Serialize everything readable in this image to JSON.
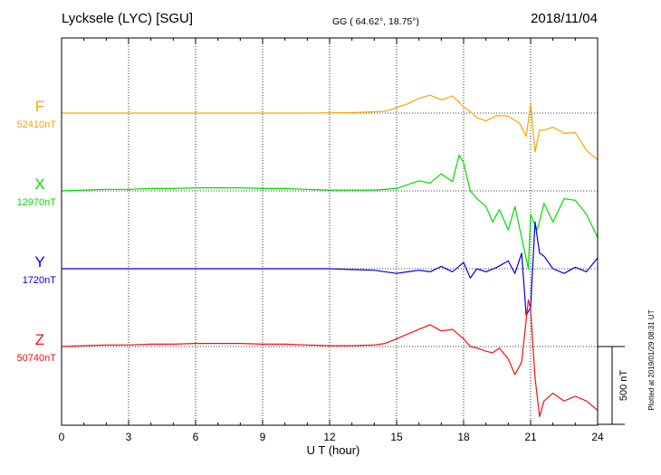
{
  "header": {
    "station": "Lycksele (LYC)  [SGU]",
    "coords": "GG ( 64.62°,  18.75°)",
    "date": "2018/11/04"
  },
  "plotted_note": "Plotted at 2019/01/29 08:31  UT",
  "chart_data": {
    "type": "line",
    "xlabel": "U T (hour)",
    "xlim": [
      0,
      24
    ],
    "xticks": [
      "0",
      "3",
      "6",
      "9",
      "12",
      "15",
      "18",
      "21",
      "24"
    ],
    "grid": true,
    "scale_bar": {
      "label": "500 nT",
      "value": 500,
      "unit": "nT"
    },
    "series": [
      {
        "name": "F",
        "baseline_label": "52410nT",
        "color": "#f5a800",
        "x": [
          0,
          1,
          2,
          3,
          4,
          5,
          6,
          7,
          8,
          9,
          10,
          11,
          12,
          13,
          14,
          14.5,
          15,
          15.5,
          16,
          16.5,
          17,
          17.5,
          17.8,
          18,
          18.3,
          18.6,
          19,
          19.5,
          20,
          20.5,
          20.8,
          21,
          21.2,
          21.4,
          21.6,
          22,
          22.5,
          23,
          23.5,
          24
        ],
        "y": [
          0,
          0,
          0,
          0,
          0,
          0,
          0,
          0,
          0,
          0,
          0,
          0,
          2,
          3,
          8,
          12,
          35,
          60,
          95,
          115,
          85,
          110,
          70,
          40,
          10,
          -30,
          -50,
          -15,
          -20,
          -65,
          -150,
          55,
          -250,
          -110,
          -110,
          -90,
          -130,
          -125,
          -240,
          -300
        ]
      },
      {
        "name": "X",
        "baseline_label": "12970nT",
        "color": "#00dd00",
        "x": [
          0,
          1,
          2,
          3,
          4,
          5,
          6,
          7,
          8,
          9,
          10,
          11,
          12,
          13,
          14,
          15,
          15.5,
          16,
          16.5,
          17,
          17.5,
          17.8,
          18,
          18.3,
          18.6,
          19,
          19.3,
          19.6,
          20,
          20.3,
          20.6,
          20.9,
          21,
          21.3,
          21.6,
          22,
          22.5,
          23,
          23.5,
          24
        ],
        "y": [
          0,
          5,
          10,
          10,
          15,
          15,
          20,
          20,
          20,
          15,
          15,
          10,
          5,
          5,
          5,
          15,
          40,
          65,
          50,
          110,
          60,
          230,
          180,
          0,
          -50,
          -100,
          -200,
          -120,
          -250,
          -100,
          -300,
          -500,
          -150,
          -250,
          -80,
          -200,
          -50,
          -60,
          -150,
          -300
        ]
      },
      {
        "name": "Y",
        "baseline_label": "1720nT",
        "color": "#0000dd",
        "x": [
          0,
          1,
          2,
          3,
          4,
          5,
          6,
          7,
          8,
          9,
          10,
          11,
          12,
          13,
          14,
          15,
          15.5,
          16,
          16.5,
          17,
          17.5,
          18,
          18.3,
          18.6,
          19,
          19.5,
          20,
          20.3,
          20.6,
          20.8,
          21,
          21.2,
          21.4,
          21.6,
          22,
          22.5,
          23,
          23.5,
          24
        ],
        "y": [
          0,
          0,
          0,
          0,
          0,
          0,
          0,
          0,
          0,
          0,
          0,
          0,
          0,
          -5,
          -10,
          -30,
          -20,
          -10,
          -20,
          15,
          -20,
          40,
          -60,
          0,
          -20,
          10,
          50,
          -30,
          100,
          -300,
          -250,
          300,
          100,
          80,
          0,
          -30,
          10,
          -20,
          70
        ]
      },
      {
        "name": "Z",
        "baseline_label": "50740nT",
        "color": "#ee1111",
        "x": [
          0,
          1,
          2,
          3,
          4,
          5,
          6,
          7,
          8,
          9,
          10,
          11,
          12,
          13,
          14,
          14.5,
          15,
          15.5,
          16,
          16.5,
          17,
          17.5,
          18,
          18.3,
          18.6,
          19,
          19.3,
          19.6,
          20,
          20.3,
          20.6,
          20.9,
          21,
          21.2,
          21.4,
          21.6,
          22,
          22.5,
          23,
          23.5,
          24
        ],
        "y": [
          0,
          5,
          10,
          10,
          15,
          15,
          20,
          20,
          20,
          15,
          15,
          10,
          5,
          5,
          10,
          20,
          50,
          80,
          110,
          140,
          100,
          110,
          50,
          0,
          -10,
          -30,
          -40,
          -10,
          -80,
          -180,
          -100,
          300,
          240,
          -200,
          -450,
          -350,
          -300,
          -350,
          -320,
          -350,
          -410
        ]
      }
    ]
  }
}
